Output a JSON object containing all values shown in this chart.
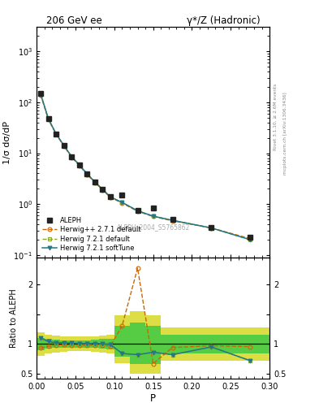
{
  "title_left": "206 GeV ee",
  "title_right": "γ*/Z (Hadronic)",
  "ylabel_main": "1/σ dσ/dP",
  "ylabel_ratio": "Ratio to ALEPH",
  "xlabel": "P",
  "watermark": "ALEPH_2004_S5765862",
  "right_label_top": "Rivet 3.1.10, ≥ 2.6M events",
  "right_label_bot": "mcplots.cern.ch [arXiv:1306.3436]",
  "aleph_x": [
    0.005,
    0.015,
    0.025,
    0.035,
    0.045,
    0.055,
    0.065,
    0.075,
    0.085,
    0.095,
    0.11,
    0.13,
    0.15,
    0.175,
    0.225,
    0.275
  ],
  "aleph_y": [
    150.0,
    48.0,
    24.0,
    14.0,
    8.5,
    5.8,
    3.9,
    2.7,
    1.95,
    1.4,
    1.5,
    0.75,
    0.85,
    0.5,
    0.35,
    0.22
  ],
  "hpp_x": [
    0.005,
    0.015,
    0.025,
    0.035,
    0.045,
    0.055,
    0.065,
    0.075,
    0.085,
    0.095,
    0.11,
    0.13,
    0.15,
    0.175,
    0.225,
    0.275
  ],
  "hpp_y": [
    140.0,
    46.0,
    23.5,
    13.8,
    8.3,
    5.7,
    3.8,
    2.65,
    1.9,
    1.35,
    1.05,
    0.72,
    0.57,
    0.47,
    0.34,
    0.21
  ],
  "h721d_x": [
    0.005,
    0.015,
    0.025,
    0.035,
    0.045,
    0.055,
    0.065,
    0.075,
    0.085,
    0.095,
    0.11,
    0.13,
    0.15,
    0.175,
    0.225,
    0.275
  ],
  "h721d_y": [
    147.0,
    47.5,
    24.0,
    14.2,
    8.6,
    5.85,
    3.92,
    2.72,
    1.95,
    1.38,
    1.08,
    0.74,
    0.58,
    0.48,
    0.34,
    0.2
  ],
  "h721s_x": [
    0.005,
    0.015,
    0.025,
    0.035,
    0.045,
    0.055,
    0.065,
    0.075,
    0.085,
    0.095,
    0.11,
    0.13,
    0.15,
    0.175,
    0.225,
    0.275
  ],
  "h721s_y": [
    147.0,
    47.5,
    24.0,
    14.2,
    8.6,
    5.85,
    3.92,
    2.72,
    1.95,
    1.38,
    1.08,
    0.74,
    0.58,
    0.48,
    0.34,
    0.2
  ],
  "ratio_hpp_x": [
    0.005,
    0.015,
    0.025,
    0.035,
    0.045,
    0.055,
    0.065,
    0.075,
    0.085,
    0.095,
    0.11,
    0.13,
    0.15,
    0.175,
    0.225,
    0.275
  ],
  "ratio_hpp_y": [
    0.93,
    0.96,
    0.98,
    0.985,
    0.976,
    0.983,
    0.974,
    0.98,
    0.974,
    0.964,
    1.3,
    2.27,
    0.67,
    0.94,
    0.97,
    0.955
  ],
  "ratio_h721d_x": [
    0.005,
    0.015,
    0.025,
    0.035,
    0.045,
    0.055,
    0.065,
    0.075,
    0.085,
    0.095,
    0.11,
    0.13,
    0.15,
    0.175,
    0.225,
    0.275
  ],
  "ratio_h721d_y": [
    1.1,
    1.04,
    1.02,
    1.02,
    1.014,
    1.009,
    1.005,
    1.01,
    1.0,
    0.99,
    0.84,
    0.82,
    0.86,
    0.82,
    0.95,
    0.72
  ],
  "ratio_h721s_x": [
    0.005,
    0.015,
    0.025,
    0.035,
    0.045,
    0.055,
    0.065,
    0.075,
    0.085,
    0.095,
    0.11,
    0.13,
    0.15,
    0.175,
    0.225,
    0.275
  ],
  "ratio_h721s_y": [
    1.1,
    1.04,
    1.02,
    1.02,
    1.014,
    1.009,
    1.005,
    1.01,
    1.0,
    0.99,
    0.84,
    0.82,
    0.86,
    0.82,
    0.95,
    0.72
  ],
  "band_x_edges": [
    0.0,
    0.01,
    0.02,
    0.03,
    0.04,
    0.05,
    0.06,
    0.07,
    0.08,
    0.09,
    0.1,
    0.12,
    0.14,
    0.16,
    0.2,
    0.25,
    0.3
  ],
  "band_yellow_lo": [
    0.8,
    0.84,
    0.86,
    0.87,
    0.88,
    0.88,
    0.88,
    0.87,
    0.86,
    0.84,
    0.68,
    0.5,
    0.5,
    0.72,
    0.72,
    0.72,
    0.72
  ],
  "band_yellow_hi": [
    1.2,
    1.16,
    1.14,
    1.13,
    1.12,
    1.12,
    1.12,
    1.13,
    1.14,
    1.16,
    1.48,
    1.55,
    1.48,
    1.28,
    1.28,
    1.28,
    1.28
  ],
  "band_green_lo": [
    0.9,
    0.92,
    0.93,
    0.94,
    0.94,
    0.94,
    0.94,
    0.93,
    0.92,
    0.91,
    0.78,
    0.66,
    0.66,
    0.84,
    0.84,
    0.84,
    0.84
  ],
  "band_green_hi": [
    1.1,
    1.08,
    1.07,
    1.06,
    1.06,
    1.06,
    1.06,
    1.07,
    1.08,
    1.09,
    1.3,
    1.36,
    1.3,
    1.16,
    1.16,
    1.16,
    1.16
  ],
  "color_aleph": "#222222",
  "color_hpp": "#cc6600",
  "color_h721d": "#88aa22",
  "color_h721s": "#227788",
  "color_yellow": "#dddd44",
  "color_green": "#55cc44",
  "xlim": [
    0.0,
    0.3
  ],
  "ylim_main": [
    0.09,
    3000
  ],
  "ylim_ratio": [
    0.42,
    2.45
  ]
}
